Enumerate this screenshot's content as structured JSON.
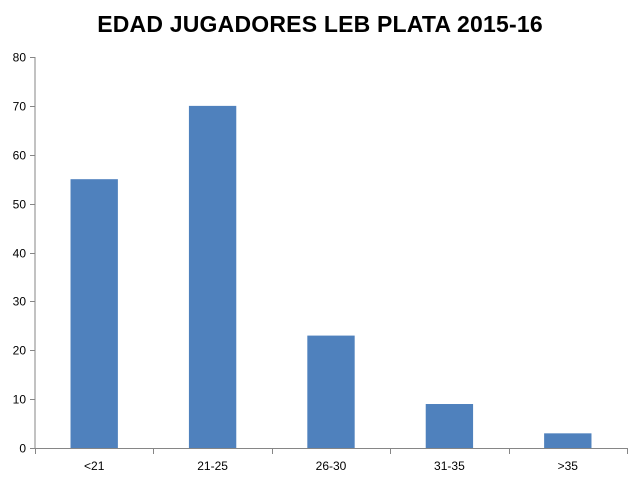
{
  "chart_data": {
    "type": "bar",
    "title": "EDAD JUGADORES LEB PLATA 2015-16",
    "categories": [
      "<21",
      "21-25",
      "26-30",
      "31-35",
      ">35"
    ],
    "values": [
      55,
      70,
      23,
      9,
      3
    ],
    "xlabel": "",
    "ylabel": "",
    "ylim": [
      0,
      80
    ],
    "yticks": [
      0,
      10,
      20,
      30,
      40,
      50,
      60,
      70,
      80
    ],
    "grid": false,
    "legend": "none",
    "bar_color": "#4f81bd",
    "axis_color": "#868686"
  }
}
